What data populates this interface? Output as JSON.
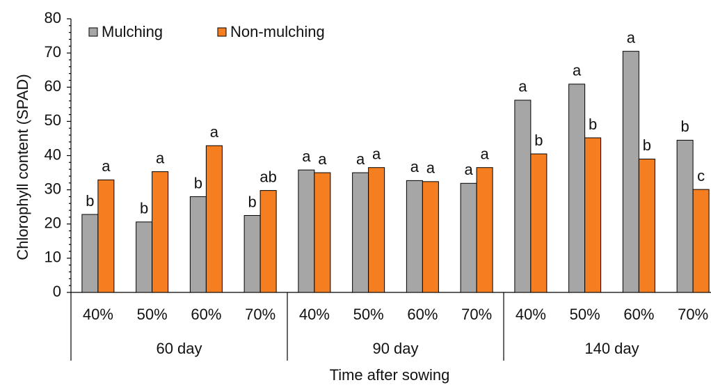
{
  "chart_data": {
    "type": "bar",
    "title": "",
    "ylabel": "Chlorophyll content (SPAD)",
    "xlabel": "Time after sowing",
    "ylim": [
      0,
      80
    ],
    "yticks": [
      "0",
      "10",
      "20",
      "30",
      "40",
      "50",
      "60",
      "70",
      "80"
    ],
    "grid": false,
    "legend_position": "top-left",
    "groups": [
      {
        "label": "60 day",
        "categories": [
          "40%",
          "50%",
          "60%",
          "70%"
        ]
      },
      {
        "label": "90 day",
        "categories": [
          "40%",
          "50%",
          "60%",
          "70%"
        ]
      },
      {
        "label": "140 day",
        "categories": [
          "40%",
          "50%",
          "60%",
          "70%"
        ]
      }
    ],
    "series": [
      {
        "name": "Mulching",
        "color": "#a6a6a6",
        "values": [
          22.8,
          20.6,
          28.0,
          22.5,
          35.8,
          35.0,
          32.7,
          31.9,
          56.2,
          60.9,
          70.5,
          44.5
        ],
        "letters": [
          "b",
          "b",
          "b",
          "b",
          "a",
          "a",
          "a",
          "a",
          "a",
          "a",
          "a",
          "b"
        ]
      },
      {
        "name": "Non-mulching",
        "color": "#f47e20",
        "values": [
          32.9,
          35.3,
          42.9,
          29.8,
          35.0,
          36.5,
          32.4,
          36.5,
          40.5,
          45.2,
          39.0,
          30.1
        ],
        "letters": [
          "a",
          "a",
          "a",
          "ab",
          "a",
          "a",
          "a",
          "a",
          "b",
          "b",
          "b",
          "c"
        ]
      }
    ]
  }
}
